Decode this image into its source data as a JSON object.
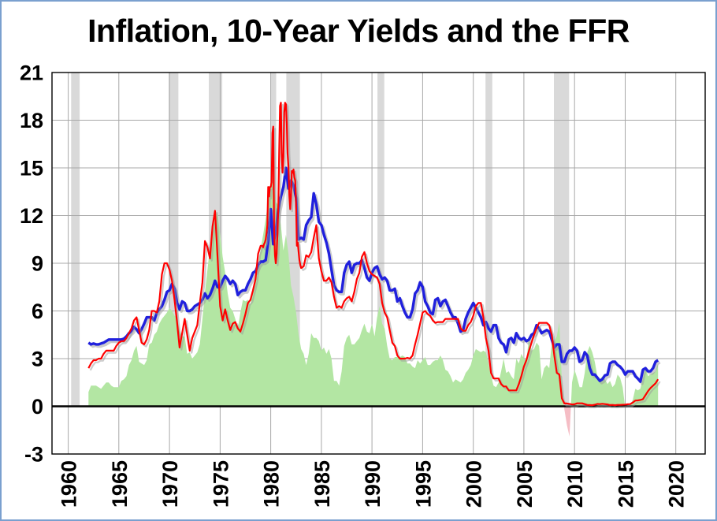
{
  "chart_data": {
    "type": "line",
    "title": "Inflation, 10-Year Yields and the FFR",
    "x_range": [
      1958.4,
      2022.9
    ],
    "y_range": [
      -3,
      21
    ],
    "x_ticks": [
      1960,
      1965,
      1970,
      1975,
      1980,
      1985,
      1990,
      1995,
      2000,
      2005,
      2010,
      2015,
      2020
    ],
    "y_ticks": [
      -3,
      0,
      3,
      6,
      9,
      12,
      15,
      18,
      21
    ],
    "grid": true,
    "legend_position": "none",
    "x_tick_rotation": -90,
    "colors": {
      "inflation_positive": "#b3e6a3",
      "inflation_negative": "#f5bdc5",
      "ten_year": "#2020dd",
      "ffr": "#ff0000",
      "recession_band": "#d9d9d9",
      "gridline": "#a8a8a8",
      "zero_line": "#000000",
      "shadow": "#999999"
    },
    "recessions": [
      [
        1960.29,
        1961.13
      ],
      [
        1969.92,
        1970.88
      ],
      [
        1973.88,
        1975.21
      ],
      [
        1980.04,
        1980.54
      ],
      [
        1981.54,
        1982.88
      ],
      [
        1990.54,
        1991.21
      ],
      [
        2001.21,
        2001.88
      ],
      [
        2007.96,
        2009.46
      ]
    ],
    "series": [
      {
        "name": "Inflation",
        "key": "inflation",
        "style": "area",
        "baseline": 0,
        "segments": [
          {
            "x0": 1962.0,
            "dx": 0.25,
            "y": [
              0.9,
              1.3,
              1.3,
              1.3,
              1.2,
              1.1,
              1.3,
              1.5,
              1.5,
              1.3,
              1.2,
              1.2,
              1.2,
              1.6,
              1.7,
              1.9,
              2.6,
              2.9,
              3.5,
              3.8,
              2.8,
              2.7,
              2.6,
              2.9,
              3.9,
              4.0,
              4.5,
              4.7,
              5.2,
              5.5,
              5.7,
              5.9,
              6.2,
              6.0,
              5.7,
              5.6,
              4.8,
              4.4,
              4.4,
              3.3,
              3.4,
              3.0,
              3.2,
              3.4,
              3.9,
              5.5,
              7.2,
              8.6,
              10.0,
              10.9,
              11.9,
              12.2,
              10.8,
              9.4,
              8.4,
              7.1,
              6.2,
              6.0,
              5.5,
              4.9,
              5.9,
              6.7,
              6.6,
              6.7,
              6.4,
              7.4,
              8.1,
              8.9,
              9.9,
              10.8,
              11.8,
              12.9,
              14.1,
              14.4,
              12.9,
              12.6,
              11.4,
              9.8,
              10.8,
              9.6,
              7.6,
              6.9,
              5.9,
              4.5,
              3.6,
              3.3,
              2.6,
              3.3,
              4.6,
              4.3,
              4.3,
              4.1,
              3.5,
              3.7,
              3.3,
              3.6,
              3.0,
              1.6,
              1.6,
              1.3,
              2.2,
              3.8,
              4.3,
              4.5,
              3.9,
              3.9,
              4.1,
              4.3,
              4.8,
              5.2,
              4.7,
              4.6,
              5.2,
              4.4,
              5.6,
              6.3,
              5.2,
              4.9,
              3.8,
              3.0,
              2.9,
              3.1,
              3.1,
              3.1,
              3.2,
              3.1,
              2.7,
              2.7,
              2.5,
              2.4,
              2.9,
              2.7,
              2.9,
              3.1,
              2.6,
              2.6,
              2.8,
              2.9,
              2.9,
              3.2,
              2.9,
              2.3,
              2.2,
              1.9,
              1.5,
              1.7,
              1.6,
              1.5,
              1.7,
              2.1,
              2.3,
              2.6,
              3.2,
              3.6,
              3.5,
              3.4,
              3.5,
              3.4,
              2.7,
              1.9,
              1.3,
              1.2,
              1.5,
              2.2,
              3.0,
              2.1,
              2.2,
              1.9,
              1.7,
              3.0,
              2.7,
              3.3,
              3.0,
              2.9,
              4.3,
              3.5,
              3.6,
              4.0,
              3.8,
              1.7,
              2.4,
              2.6,
              2.4,
              4.0,
              4.1,
              4.4,
              5.3,
              1.6,
              -0.2,
              -1.2,
              -1.9,
              1.5,
              2.3,
              1.8,
              1.2,
              1.2,
              2.1,
              3.4,
              3.8,
              3.4,
              2.8,
              1.9,
              1.7,
              1.9,
              1.7,
              1.4,
              1.6,
              1.2,
              1.4,
              2.0,
              1.8,
              1.2,
              -0.1,
              0.0,
              0.1,
              0.4,
              1.1,
              1.0,
              1.1,
              1.8,
              2.5,
              1.9,
              2.0,
              2.1,
              2.2,
              2.7
            ]
          }
        ]
      },
      {
        "name": "10-Year Yields",
        "key": "ten-year",
        "style": "line",
        "color_key": "ten_year",
        "width": 3.4,
        "segments": [
          {
            "x0": 1962.0,
            "dx": 0.25,
            "y": [
              4.0,
              3.9,
              3.95,
              3.9,
              3.9,
              3.95,
              4.0,
              4.1,
              4.2,
              4.2,
              4.2,
              4.2,
              4.2,
              4.2,
              4.25,
              4.4,
              4.6,
              4.75,
              5.0,
              4.85,
              4.6,
              4.85,
              5.2,
              5.6,
              5.6,
              5.6,
              5.4,
              5.9,
              6.1,
              6.3,
              6.7,
              7.2,
              7.3,
              7.7,
              7.4,
              6.5,
              6.1,
              6.6,
              6.5,
              6.0,
              6.0,
              6.1,
              6.3,
              6.4,
              6.5,
              6.7,
              7.1,
              6.8,
              7.0,
              7.4,
              7.9,
              7.5,
              7.5,
              7.9,
              8.2,
              8.0,
              7.7,
              7.9,
              7.7,
              7.0,
              7.2,
              7.3,
              7.3,
              7.7,
              8.0,
              8.4,
              8.5,
              8.9,
              9.1,
              9.1,
              9.2,
              10.4,
              12.4,
              10.2,
              11.0,
              12.4,
              13.2,
              13.8,
              15.0,
              13.7,
              14.2,
              13.9,
              13.1,
              10.5,
              10.6,
              10.5,
              11.4,
              11.7,
              11.9,
              13.4,
              12.7,
              11.6,
              11.4,
              10.8,
              10.3,
              9.6,
              8.6,
              7.6,
              7.3,
              7.2,
              7.2,
              8.4,
              8.9,
              9.1,
              8.4,
              8.9,
              9.0,
              9.0,
              9.2,
              8.7,
              8.1,
              7.9,
              8.4,
              8.7,
              8.8,
              8.3,
              8.0,
              8.1,
              7.9,
              7.3,
              7.3,
              7.4,
              6.6,
              6.8,
              6.3,
              5.9,
              5.6,
              5.6,
              6.1,
              7.1,
              7.3,
              7.8,
              7.5,
              6.6,
              6.3,
              5.9,
              5.8,
              6.7,
              6.8,
              6.3,
              6.6,
              6.7,
              6.3,
              5.9,
              5.6,
              5.6,
              5.2,
              4.7,
              4.8,
              5.5,
              5.9,
              6.2,
              6.5,
              6.2,
              5.9,
              5.6,
              5.1,
              5.3,
              4.9,
              4.7,
              5.1,
              5.1,
              4.3,
              4.0,
              3.9,
              3.4,
              4.2,
              4.3,
              4.0,
              4.6,
              4.3,
              4.2,
              4.3,
              4.1,
              4.2,
              4.5,
              4.6,
              5.1,
              4.9,
              4.6,
              4.7,
              4.8,
              4.7,
              4.2,
              3.7,
              3.9,
              3.9,
              2.8,
              2.8,
              3.3,
              3.5,
              3.5,
              3.7,
              3.5,
              2.8,
              2.9,
              3.4,
              3.2,
              2.4,
              2.0,
              2.0,
              1.8,
              1.6,
              1.7,
              1.95,
              2.0,
              2.7,
              2.8,
              2.8,
              2.6,
              2.5,
              2.3,
              2.0,
              2.2,
              2.2,
              2.2,
              1.9,
              1.75,
              1.55,
              2.3,
              2.4,
              2.2,
              2.2,
              2.4,
              2.8,
              2.9
            ]
          }
        ]
      },
      {
        "name": "FFR",
        "key": "ffr",
        "style": "line",
        "color_key": "ffr",
        "width": 2.2,
        "segments": [
          {
            "x0": 1962.0,
            "dx": 0.25,
            "y": [
              2.4,
              2.7,
              2.9,
              2.9,
              3.0,
              3.0,
              3.3,
              3.5,
              3.5,
              3.5,
              3.5,
              3.8,
              4.0,
              4.1,
              4.1,
              4.3,
              4.6,
              4.9,
              5.4,
              5.6,
              4.8,
              4.0,
              3.9,
              4.2,
              4.8,
              6.0,
              6.0,
              5.9,
              6.6,
              8.3,
              9.0,
              9.0,
              8.6,
              7.9,
              6.7,
              5.3,
              3.7,
              4.6,
              5.5,
              4.5,
              3.5,
              4.3,
              4.7,
              5.1,
              6.5,
              7.8,
              10.4,
              10.0,
              9.3,
              11.3,
              12.3,
              9.4,
              6.3,
              5.4,
              6.1,
              5.4,
              4.8,
              5.2,
              5.3,
              4.9,
              4.7,
              5.2,
              5.8,
              6.5,
              6.7,
              7.3,
              8.0,
              9.6
            ]
          },
          {
            "x0": 1979.0,
            "dx": 0.0833333,
            "y": [
              10.1,
              10.1,
              10.1,
              10.0,
              10.2,
              10.3,
              10.5,
              10.9,
              11.4,
              13.8,
              13.2,
              13.8,
              13.8,
              14.1,
              17.2,
              17.6,
              11.0,
              9.5,
              9.0,
              9.6,
              10.9,
              12.8,
              15.9,
              18.9,
              19.1,
              15.9,
              14.7,
              15.7,
              18.5,
              19.1,
              19.0,
              17.8,
              15.9,
              15.1,
              13.3,
              12.4,
              13.2,
              14.8,
              14.7,
              14.9,
              14.4,
              14.2,
              12.6,
              10.1,
              10.3,
              9.7,
              9.2,
              8.9
            ]
          },
          {
            "x0": 1983.0,
            "dx": 0.25,
            "y": [
              8.7,
              8.8,
              9.5,
              9.4,
              9.7,
              10.6,
              11.4,
              9.3,
              8.5,
              7.9,
              7.9,
              8.1,
              7.8,
              6.9,
              6.2,
              6.3,
              6.2,
              6.6,
              6.8,
              6.9,
              6.6,
              7.2,
              8.0,
              8.4,
              9.4,
              9.7,
              9.0,
              8.5,
              8.3,
              8.2,
              8.1,
              7.7,
              6.5,
              5.9,
              5.6,
              4.8,
              4.0,
              3.8,
              3.2,
              3.0,
              3.0,
              3.0,
              3.05,
              3.0,
              3.2,
              3.9,
              4.5,
              5.2,
              5.9,
              6.0,
              5.8,
              5.7,
              5.4,
              5.25,
              5.3,
              5.3,
              5.3,
              5.5,
              5.5,
              5.5,
              5.5,
              5.5,
              5.5,
              4.9,
              4.75,
              4.75,
              5.1,
              5.3,
              5.7,
              6.3,
              6.5,
              6.5,
              5.6,
              4.3,
              3.5,
              2.1,
              1.75,
              1.75,
              1.75,
              1.4,
              1.25,
              1.25,
              1.0,
              1.0,
              1.0,
              1.0,
              1.4,
              1.9,
              2.5,
              2.9,
              3.5,
              4.0,
              4.5,
              4.9,
              5.25,
              5.25,
              5.25,
              5.25,
              5.1,
              4.5,
              3.2,
              2.1,
              2.0,
              0.5,
              0.18,
              0.18,
              0.15,
              0.12,
              0.13,
              0.19,
              0.19,
              0.19,
              0.14,
              0.09,
              0.08,
              0.07,
              0.1,
              0.15,
              0.14,
              0.16,
              0.14,
              0.12,
              0.08,
              0.09,
              0.07,
              0.09,
              0.09,
              0.1,
              0.11,
              0.13,
              0.14,
              0.24,
              0.36,
              0.37,
              0.4,
              0.45,
              0.7,
              0.95,
              1.15,
              1.3,
              1.45,
              1.7
            ]
          }
        ]
      }
    ]
  }
}
